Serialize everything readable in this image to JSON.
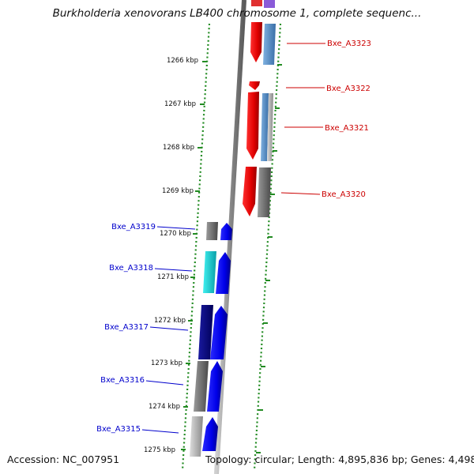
{
  "title": "Burkholderia xenovorans LB400 chromosome 1, complete sequenc...",
  "footer": {
    "accession": "Accession: NC_007951",
    "topology": "Topology: circular; Length: 4,895,836 bp; Genes: 4,498"
  },
  "ticks": [
    "1266 kbp",
    "1267 kbp",
    "1268 kbp",
    "1269 kbp",
    "1270 kbp",
    "1271 kbp",
    "1272 kbp",
    "1273 kbp",
    "1274 kbp",
    "1275 kbp"
  ],
  "genes_forward": [
    "Bxe_A3323",
    "Bxe_A3322",
    "Bxe_A3321",
    "Bxe_A3320"
  ],
  "genes_reverse": [
    "Bxe_A3319",
    "Bxe_A3318",
    "Bxe_A3317",
    "Bxe_A3316",
    "Bxe_A3315"
  ],
  "colors": {
    "forward_label": "#cc0000",
    "reverse_label": "#0000cc",
    "forward_gene": "#ee0000",
    "reverse_gene": "#0000ee",
    "ruler_dots": "#228b22",
    "backbone": "#888888"
  }
}
